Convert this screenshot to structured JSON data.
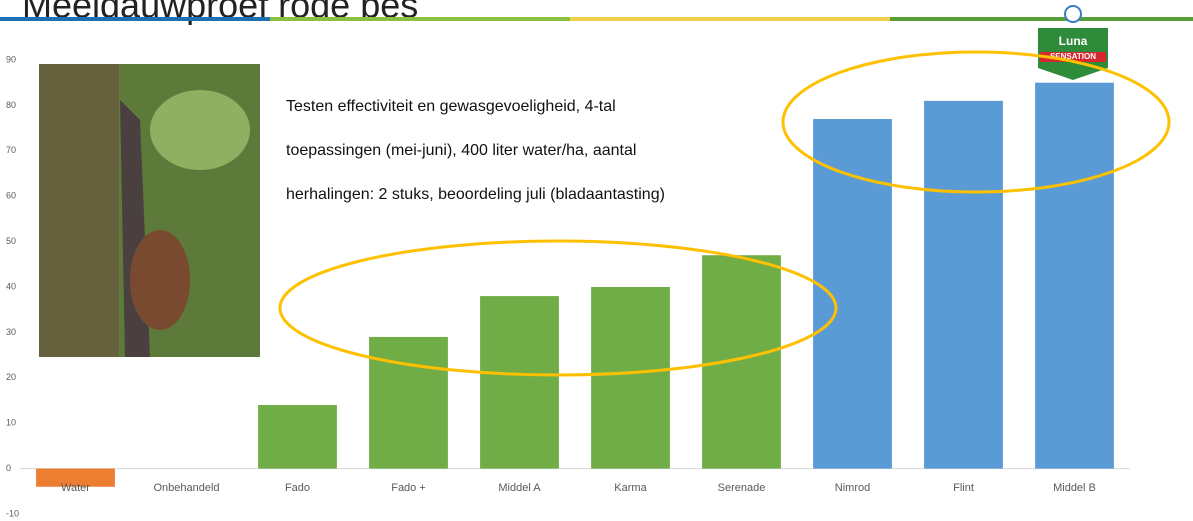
{
  "chart_data": {
    "type": "bar",
    "title": "Meeldauwproef rode bes",
    "annotation": [
      "Testen effectiviteit en gewasgevoeligheid, 4-tal",
      "toepassingen (mei-juni), 400 liter water/ha, aantal",
      "herhalingen: 2 stuks, beoordeling juli (bladaantasting)"
    ],
    "logo": [
      "Luna",
      "SENSATION"
    ],
    "categories": [
      "Water",
      "Onbehandeld",
      "Fado",
      "Fado +",
      "Middel A",
      "Karma",
      "Serenade",
      "Nimrod",
      "Flint",
      "Middel B"
    ],
    "values": [
      -4,
      0,
      14,
      29,
      38,
      40,
      47,
      77,
      81,
      85
    ],
    "colors": [
      "#ed7d31",
      "#70ad47",
      "#70ad47",
      "#70ad47",
      "#70ad47",
      "#70ad47",
      "#70ad47",
      "#5b9bd5",
      "#5b9bd5",
      "#5b9bd5"
    ],
    "ylim": [
      -10,
      90
    ],
    "yticks": [
      -10,
      0,
      10,
      20,
      30,
      40,
      50,
      60,
      70,
      80,
      90
    ],
    "grid": false
  }
}
